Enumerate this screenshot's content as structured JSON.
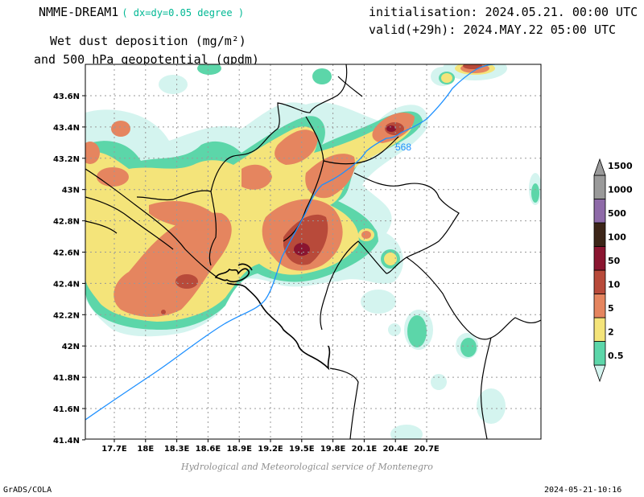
{
  "header": {
    "model": "NMME-DREAM1",
    "resolution": "( dx=dy=0.05 degree )",
    "title_line1": "Wet dust deposition (mg/m²)",
    "title_line2": "and 500 hPa geopotential (gpdm)",
    "init": "initialisation: 2024.05.21. 00:00 UTC",
    "valid": "valid(+29h): 2024.MAY.22 05:00 UTC"
  },
  "map": {
    "lat_labels": [
      "43.6N",
      "43.4N",
      "43.2N",
      "43N",
      "42.8N",
      "42.6N",
      "42.4N",
      "42.2N",
      "42N",
      "41.8N",
      "41.6N",
      "41.4N"
    ],
    "lon_labels": [
      "17.7E",
      "18E",
      "18.3E",
      "18.6E",
      "18.9E",
      "19.2E",
      "19.5E",
      "19.8E",
      "20.1E",
      "20.4E",
      "20.7E"
    ],
    "contour_label": "568",
    "contour_color": "#1e90ff",
    "grid": true
  },
  "colorbar": {
    "levels": [
      {
        "label": "0.5",
        "color": "#d4f4ef"
      },
      {
        "label": "2",
        "color": "#5cd6a9"
      },
      {
        "label": "5",
        "color": "#f4e47a"
      },
      {
        "label": "10",
        "color": "#e5855f"
      },
      {
        "label": "50",
        "color": "#b84a3a"
      },
      {
        "label": "100",
        "color": "#8a1530"
      },
      {
        "label": "500",
        "color": "#3c2518"
      },
      {
        "label": "1000",
        "color": "#8e6aa8"
      },
      {
        "label": "1500",
        "color": "#9a9a9a"
      }
    ]
  },
  "footer": {
    "credit": "Hydrological and Meteorological service of Montenegro",
    "software": "GrADS/COLA",
    "timestamp": "2024-05-21-10:16"
  }
}
